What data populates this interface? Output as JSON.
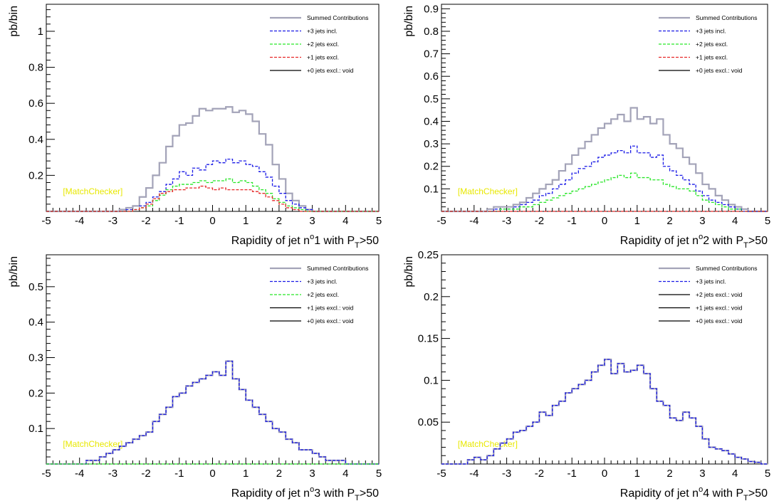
{
  "watermark": "[MatchChecker]",
  "ylabel": "pb/bin",
  "series_colors": {
    "sum": "#a3a3b8",
    "j3": "#1a1ae6",
    "j2": "#28e628",
    "j1": "#e62828",
    "j0": "#000000"
  },
  "chart_data": [
    {
      "type": "line",
      "xlabel": {
        "pre": "Rapidity of jet n",
        "sup": "o",
        "mid": "1 with P",
        "sub": "T",
        "post": ">50"
      },
      "ylabel": "pb/bin",
      "xlim": [
        -5,
        5
      ],
      "ylim": [
        0,
        1.15
      ],
      "yticks": [
        0.2,
        0.4,
        0.6,
        0.8,
        1
      ],
      "xticks": [
        -5,
        -4,
        -3,
        -2,
        -1,
        0,
        1,
        2,
        3,
        4,
        5
      ],
      "legend": [
        {
          "label": "Summed Contributions",
          "color": "#a3a3b8",
          "dash": "solid"
        },
        {
          "label": "+3 jets incl.",
          "color": "#1a1ae6",
          "dash": "dash"
        },
        {
          "label": "+2 jets excl.",
          "color": "#28e628",
          "dash": "dash"
        },
        {
          "label": "+1 jets excl.",
          "color": "#e62828",
          "dash": "dash"
        },
        {
          "label": "+0 jets  excl.: void",
          "color": "#000000",
          "dash": "solid"
        }
      ],
      "series": [
        {
          "name": "Summed Contributions",
          "color": "#a3a3b8",
          "dash": "solid",
          "width": 2.2,
          "values": [
            0,
            0,
            0,
            0,
            0,
            0,
            0,
            0,
            0,
            0,
            0,
            0.01,
            0.02,
            0.03,
            0.08,
            0.13,
            0.2,
            0.27,
            0.36,
            0.42,
            0.48,
            0.49,
            0.53,
            0.57,
            0.56,
            0.57,
            0.57,
            0.58,
            0.55,
            0.56,
            0.54,
            0.5,
            0.43,
            0.37,
            0.26,
            0.18,
            0.1,
            0.06,
            0.03,
            0.01,
            0,
            0,
            0,
            0,
            0,
            0,
            0,
            0,
            0,
            0
          ]
        },
        {
          "name": "+3 jets incl.",
          "color": "#1a1ae6",
          "dash": "dash",
          "width": 1.3,
          "values": [
            0,
            0,
            0,
            0,
            0,
            0,
            0,
            0,
            0,
            0,
            0,
            0,
            0.01,
            0.01,
            0.03,
            0.05,
            0.08,
            0.11,
            0.15,
            0.18,
            0.22,
            0.2,
            0.24,
            0.23,
            0.26,
            0.28,
            0.27,
            0.29,
            0.27,
            0.28,
            0.26,
            0.25,
            0.22,
            0.19,
            0.14,
            0.1,
            0.06,
            0.04,
            0.02,
            0.01,
            0,
            0,
            0,
            0,
            0,
            0,
            0,
            0,
            0,
            0
          ]
        },
        {
          "name": "+2 jets excl.",
          "color": "#28e628",
          "dash": "dash",
          "width": 1.3,
          "values": [
            0,
            0,
            0,
            0,
            0,
            0,
            0,
            0,
            0,
            0,
            0,
            0,
            0,
            0.01,
            0.02,
            0.03,
            0.06,
            0.09,
            0.12,
            0.14,
            0.15,
            0.15,
            0.16,
            0.17,
            0.16,
            0.17,
            0.17,
            0.18,
            0.16,
            0.17,
            0.16,
            0.14,
            0.12,
            0.1,
            0.07,
            0.05,
            0.03,
            0.02,
            0.01,
            0,
            0,
            0,
            0,
            0,
            0,
            0,
            0,
            0,
            0,
            0
          ]
        },
        {
          "name": "+1 jets excl.",
          "color": "#e62828",
          "dash": "dash",
          "width": 1.3,
          "values": [
            0,
            0,
            0,
            0,
            0,
            0,
            0,
            0,
            0,
            0,
            0,
            0,
            0,
            0.01,
            0.02,
            0.04,
            0.07,
            0.1,
            0.11,
            0.12,
            0.12,
            0.13,
            0.13,
            0.14,
            0.13,
            0.12,
            0.13,
            0.12,
            0.12,
            0.12,
            0.12,
            0.11,
            0.1,
            0.08,
            0.06,
            0.04,
            0.02,
            0.01,
            0,
            0,
            0,
            0,
            0,
            0,
            0,
            0,
            0,
            0,
            0,
            0
          ]
        }
      ]
    },
    {
      "type": "line",
      "xlabel": {
        "pre": "Rapidity of jet n",
        "sup": "o",
        "mid": "2 with P",
        "sub": "T",
        "post": ">50"
      },
      "ylabel": "pb/bin",
      "xlim": [
        -5,
        5
      ],
      "ylim": [
        0,
        0.92
      ],
      "yticks": [
        0.1,
        0.2,
        0.3,
        0.4,
        0.5,
        0.6,
        0.7,
        0.8,
        0.9
      ],
      "xticks": [
        -5,
        -4,
        -3,
        -2,
        -1,
        0,
        1,
        2,
        3,
        4,
        5
      ],
      "legend": [
        {
          "label": "Summed Contributions",
          "color": "#a3a3b8",
          "dash": "solid"
        },
        {
          "label": "+3 jets incl.",
          "color": "#1a1ae6",
          "dash": "dash"
        },
        {
          "label": "+2 jets excl.",
          "color": "#28e628",
          "dash": "dash"
        },
        {
          "label": "+1 jets excl.",
          "color": "#e62828",
          "dash": "dash"
        },
        {
          "label": "+0 jets  excl.: void",
          "color": "#000000",
          "dash": "solid"
        }
      ],
      "series": [
        {
          "name": "Summed Contributions",
          "color": "#a3a3b8",
          "dash": "solid",
          "width": 2.2,
          "values": [
            0,
            0,
            0,
            0,
            0,
            0,
            0,
            0.01,
            0.02,
            0.02,
            0.02,
            0.03,
            0.04,
            0.06,
            0.08,
            0.1,
            0.12,
            0.14,
            0.18,
            0.21,
            0.25,
            0.28,
            0.31,
            0.34,
            0.37,
            0.39,
            0.41,
            0.43,
            0.4,
            0.46,
            0.41,
            0.42,
            0.39,
            0.41,
            0.34,
            0.3,
            0.28,
            0.24,
            0.21,
            0.17,
            0.12,
            0.1,
            0.07,
            0.05,
            0.03,
            0.02,
            0.01,
            0,
            0,
            0
          ]
        },
        {
          "name": "+3 jets incl.",
          "color": "#1a1ae6",
          "dash": "dash",
          "width": 1.3,
          "values": [
            0,
            0,
            0,
            0,
            0,
            0,
            0,
            0,
            0.01,
            0.01,
            0.01,
            0.02,
            0.03,
            0.04,
            0.05,
            0.07,
            0.08,
            0.1,
            0.12,
            0.14,
            0.17,
            0.19,
            0.2,
            0.22,
            0.24,
            0.25,
            0.26,
            0.27,
            0.26,
            0.29,
            0.26,
            0.26,
            0.24,
            0.25,
            0.2,
            0.18,
            0.16,
            0.14,
            0.12,
            0.09,
            0.07,
            0.05,
            0.04,
            0.03,
            0.02,
            0.01,
            0,
            0,
            0,
            0
          ]
        },
        {
          "name": "+2 jets excl.",
          "color": "#28e628",
          "dash": "dash",
          "width": 1.3,
          "values": [
            0,
            0,
            0,
            0,
            0,
            0,
            0,
            0,
            0,
            0.01,
            0.01,
            0.01,
            0.02,
            0.02,
            0.03,
            0.04,
            0.05,
            0.06,
            0.07,
            0.08,
            0.09,
            0.1,
            0.11,
            0.12,
            0.13,
            0.14,
            0.15,
            0.16,
            0.15,
            0.17,
            0.15,
            0.15,
            0.14,
            0.14,
            0.12,
            0.11,
            0.1,
            0.1,
            0.09,
            0.07,
            0.05,
            0.04,
            0.03,
            0.02,
            0.01,
            0.01,
            0,
            0,
            0,
            0
          ]
        },
        {
          "name": "+1 jets excl.",
          "color": "#e62828",
          "dash": "dash",
          "width": 1.3,
          "values": [
            0,
            0,
            0,
            0,
            0,
            0,
            0,
            0,
            0,
            0,
            0,
            0,
            0,
            0,
            0,
            0,
            0,
            0,
            0,
            0,
            0,
            0,
            0,
            0,
            0,
            0,
            0,
            0,
            0,
            0,
            0,
            0,
            0,
            0,
            0,
            0,
            0,
            0,
            0,
            0,
            0,
            0,
            0,
            0,
            0,
            0,
            0,
            0,
            0,
            0
          ]
        }
      ]
    },
    {
      "type": "line",
      "xlabel": {
        "pre": "Rapidity of jet n",
        "sup": "o",
        "mid": "3 with P",
        "sub": "T",
        "post": ">50"
      },
      "ylabel": "pb/bin",
      "xlim": [
        -5,
        5
      ],
      "ylim": [
        0,
        0.59
      ],
      "yticks": [
        0.1,
        0.2,
        0.3,
        0.4,
        0.5
      ],
      "xticks": [
        -5,
        -4,
        -3,
        -2,
        -1,
        0,
        1,
        2,
        3,
        4,
        5
      ],
      "legend": [
        {
          "label": "Summed Contributions",
          "color": "#a3a3b8",
          "dash": "solid"
        },
        {
          "label": "+3 jets incl.",
          "color": "#1a1ae6",
          "dash": "dash"
        },
        {
          "label": "+2 jets excl.",
          "color": "#28e628",
          "dash": "dash"
        },
        {
          "label": "+1 jets excl.: void",
          "color": "#000000",
          "dash": "solid"
        },
        {
          "label": "+0 jets  excl.: void",
          "color": "#000000",
          "dash": "solid"
        }
      ],
      "series": [
        {
          "name": "Summed Contributions",
          "color": "#a3a3b8",
          "dash": "solid",
          "width": 2.2,
          "values": [
            0,
            0,
            0,
            0,
            0,
            0,
            0.01,
            0.01,
            0.02,
            0.03,
            0.04,
            0.05,
            0.06,
            0.07,
            0.08,
            0.09,
            0.12,
            0.14,
            0.16,
            0.19,
            0.2,
            0.22,
            0.23,
            0.24,
            0.25,
            0.26,
            0.25,
            0.29,
            0.24,
            0.21,
            0.18,
            0.16,
            0.14,
            0.12,
            0.1,
            0.09,
            0.07,
            0.06,
            0.04,
            0.04,
            0.03,
            0.02,
            0.01,
            0.01,
            0.01,
            0,
            0,
            0,
            0,
            0
          ]
        },
        {
          "name": "+3 jets incl.",
          "color": "#1a1ae6",
          "dash": "dash",
          "width": 1.3,
          "values": [
            0,
            0,
            0,
            0,
            0,
            0,
            0.01,
            0.01,
            0.02,
            0.03,
            0.04,
            0.05,
            0.06,
            0.07,
            0.08,
            0.09,
            0.12,
            0.14,
            0.16,
            0.19,
            0.2,
            0.22,
            0.23,
            0.24,
            0.25,
            0.26,
            0.25,
            0.29,
            0.24,
            0.21,
            0.18,
            0.16,
            0.14,
            0.12,
            0.1,
            0.09,
            0.07,
            0.06,
            0.04,
            0.04,
            0.03,
            0.02,
            0.01,
            0.01,
            0.01,
            0,
            0,
            0,
            0,
            0
          ]
        },
        {
          "name": "+2 jets excl.",
          "color": "#28e628",
          "dash": "dash",
          "width": 1.3,
          "values": [
            0,
            0,
            0,
            0,
            0,
            0,
            0,
            0,
            0,
            0,
            0,
            0,
            0,
            0,
            0,
            0,
            0,
            0,
            0,
            0,
            0,
            0,
            0,
            0,
            0,
            0,
            0,
            0,
            0,
            0,
            0,
            0,
            0,
            0,
            0,
            0,
            0,
            0,
            0,
            0,
            0,
            0,
            0,
            0,
            0,
            0,
            0,
            0,
            0,
            0
          ]
        }
      ]
    },
    {
      "type": "line",
      "xlabel": {
        "pre": "Rapidity of jet n",
        "sup": "o",
        "mid": "4 with P",
        "sub": "T",
        "post": ">50"
      },
      "ylabel": "pb/bin",
      "xlim": [
        -5,
        5
      ],
      "ylim": [
        0,
        0.25
      ],
      "yticks": [
        0.05,
        0.1,
        0.15,
        0.2,
        0.25
      ],
      "xticks": [
        -5,
        -4,
        -3,
        -2,
        -1,
        0,
        1,
        2,
        3,
        4,
        5
      ],
      "legend": [
        {
          "label": "Summed Contributions",
          "color": "#a3a3b8",
          "dash": "solid"
        },
        {
          "label": "+3 jets incl.",
          "color": "#1a1ae6",
          "dash": "dash"
        },
        {
          "label": "+2 jets excl.: void",
          "color": "#000000",
          "dash": "solid"
        },
        {
          "label": "+1 jets excl.: void",
          "color": "#000000",
          "dash": "solid"
        },
        {
          "label": "+0 jets  excl.: void",
          "color": "#000000",
          "dash": "solid"
        }
      ],
      "series": [
        {
          "name": "Summed Contributions",
          "color": "#a3a3b8",
          "dash": "solid",
          "width": 2.2,
          "values": [
            0,
            0,
            0,
            0,
            0.005,
            0.008,
            0.005,
            0.01,
            0.018,
            0.025,
            0.03,
            0.038,
            0.04,
            0.045,
            0.05,
            0.062,
            0.058,
            0.07,
            0.075,
            0.085,
            0.09,
            0.095,
            0.1,
            0.11,
            0.118,
            0.125,
            0.108,
            0.12,
            0.11,
            0.112,
            0.118,
            0.108,
            0.09,
            0.075,
            0.07,
            0.055,
            0.052,
            0.062,
            0.055,
            0.045,
            0.03,
            0.02,
            0.018,
            0.016,
            0.012,
            0.008,
            0.006,
            0.003,
            0.002,
            0
          ]
        },
        {
          "name": "+3 jets incl.",
          "color": "#1a1ae6",
          "dash": "dash",
          "width": 1.3,
          "values": [
            0,
            0,
            0,
            0,
            0.005,
            0.008,
            0.005,
            0.01,
            0.018,
            0.025,
            0.03,
            0.038,
            0.04,
            0.045,
            0.05,
            0.062,
            0.058,
            0.07,
            0.075,
            0.085,
            0.09,
            0.095,
            0.1,
            0.11,
            0.118,
            0.125,
            0.108,
            0.12,
            0.11,
            0.112,
            0.118,
            0.108,
            0.09,
            0.075,
            0.07,
            0.055,
            0.052,
            0.062,
            0.055,
            0.045,
            0.03,
            0.02,
            0.018,
            0.016,
            0.012,
            0.008,
            0.006,
            0.003,
            0.002,
            0
          ]
        }
      ]
    }
  ]
}
